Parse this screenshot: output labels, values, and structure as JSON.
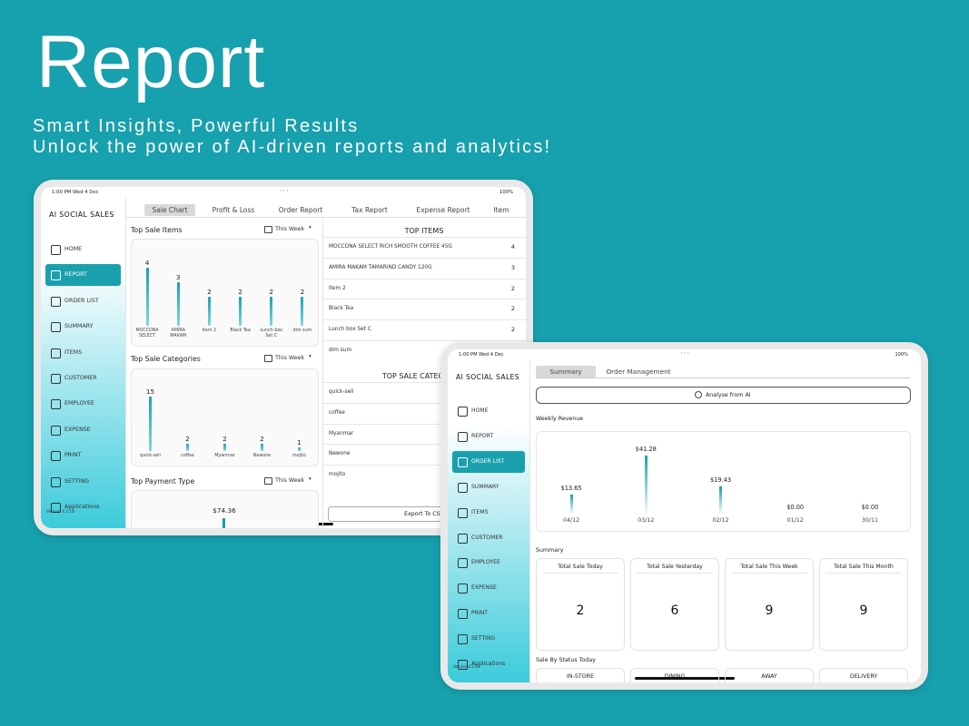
{
  "header": {
    "title": "Report",
    "subtitle_lines": [
      "Smart Insights, Powerful Results",
      "Unlock the power of AI-driven reports and analytics!"
    ]
  },
  "tablet_left": {
    "status": {
      "time": "1:00 PM  Wed 4 Dec",
      "battery": "100%"
    },
    "app_name": "AI SOCIAL SALES",
    "menu": [
      "HOME",
      "REPORT",
      "ORDER LIST",
      "SUMMARY",
      "ITEMS",
      "CUSTOMER",
      "EMPLOYEE",
      "EXPENSE",
      "PRINT",
      "SETTING",
      "Applications"
    ],
    "active_menu": 1,
    "version": "Version 4.2.18",
    "tabs": [
      "Sale Chart",
      "Profit & Loss",
      "Order Report",
      "Tax Report",
      "Expense Report",
      "Item"
    ],
    "active_tab": 0,
    "top_sale_items": {
      "title": "Top Sale Items",
      "period": "This Week",
      "categories": [
        "MOCCONA SELECT",
        "AMIRA MAKAM",
        "item 2",
        "Black Tea",
        "Lunch box Set C",
        "dim sum"
      ],
      "values": [
        4,
        3,
        2,
        2,
        2,
        2
      ]
    },
    "top_sale_categories": {
      "title": "Top Sale Categories",
      "period": "This Week",
      "categories": [
        "quick-sell",
        "coffee",
        "Myanmar",
        "Newone",
        "mojito"
      ],
      "values": [
        15,
        2,
        2,
        2,
        1
      ]
    },
    "top_payment_type": {
      "title": "Top Payment Type",
      "period": "This Week",
      "values": [
        74.36
      ],
      "value_labels": [
        "$74.36"
      ]
    },
    "top_items": {
      "title": "TOP ITEMS",
      "rows": [
        {
          "name": "MOCCONA SELECT RICH SMOOTH COFFEE 45G",
          "count": 4
        },
        {
          "name": "AMIRA MAKAM TAMARIND CANDY 120G",
          "count": 3
        },
        {
          "name": "item 2",
          "count": 2
        },
        {
          "name": "Black Tea",
          "count": 2
        },
        {
          "name": "Lunch box Set C",
          "count": 2
        },
        {
          "name": "dim sum"
        }
      ]
    },
    "top_sale_categories_list": {
      "title": "TOP SALE CATEGORIES",
      "rows": [
        "quick-sell",
        "coffee",
        "Myanmar",
        "Newone",
        "mojito"
      ]
    },
    "export_button": "Export To CSV"
  },
  "tablet_right": {
    "status": {
      "time": "1:00 PM  Wed 4 Dec",
      "battery": "100%"
    },
    "app_name": "AI SOCIAL SALES",
    "menu": [
      "HOME",
      "REPORT",
      "ORDER LIST",
      "SUMMARY",
      "ITEMS",
      "CUSTOMER",
      "EMPLOYEE",
      "EXPENSE",
      "PRINT",
      "SETTING",
      "Applications"
    ],
    "active_menu": 2,
    "version": "Version 4.2.18",
    "tabs": [
      "Summary",
      "Order Management"
    ],
    "active_tab": 0,
    "analyse_button": "Analyse from AI",
    "weekly_revenue": {
      "title": "Weekly Revenue",
      "categories": [
        "04/12",
        "03/12",
        "02/12",
        "01/12",
        "30/11"
      ],
      "values": [
        13.65,
        41.28,
        19.43,
        0,
        0
      ],
      "value_labels": [
        "$13.65",
        "$41.28",
        "$19.43",
        "$0.00",
        "$0.00"
      ]
    },
    "summary": {
      "title": "Summary",
      "cards": [
        {
          "label": "Total Sale Today",
          "value": 2
        },
        {
          "label": "Total Sale Yesterday",
          "value": 6
        },
        {
          "label": "Total Sale This Week",
          "value": 9
        },
        {
          "label": "Total Sale This Month",
          "value": 9
        }
      ]
    },
    "sale_by_status": {
      "title": "Sale By Status Today",
      "labels": [
        "IN-STORE",
        "DINING",
        "AWAY",
        "DELIVERY"
      ]
    }
  }
}
